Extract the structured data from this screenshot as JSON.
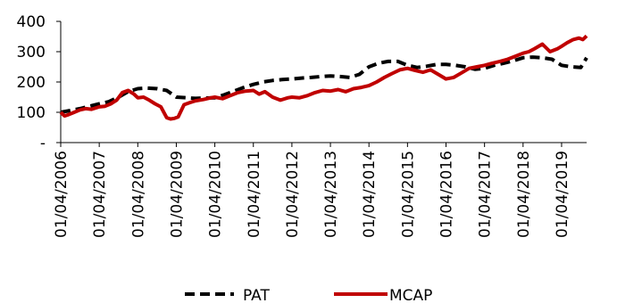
{
  "chart_data": {
    "type": "line",
    "title": "",
    "xlabel": "",
    "ylabel": "",
    "ylim": [
      0,
      400
    ],
    "yticks": [
      {
        "value": 0,
        "label": "-"
      },
      {
        "value": 100,
        "label": "100"
      },
      {
        "value": 200,
        "label": "200"
      },
      {
        "value": 300,
        "label": "300"
      },
      {
        "value": 400,
        "label": "400"
      }
    ],
    "xlim": [
      2006.0,
      2019.65
    ],
    "xticks": [
      {
        "value": 2006,
        "label": "01/04/2006"
      },
      {
        "value": 2007,
        "label": "01/04/2007"
      },
      {
        "value": 2008,
        "label": "01/04/2008"
      },
      {
        "value": 2009,
        "label": "01/04/2009"
      },
      {
        "value": 2010,
        "label": "01/04/2010"
      },
      {
        "value": 2011,
        "label": "01/04/2011"
      },
      {
        "value": 2012,
        "label": "01/04/2012"
      },
      {
        "value": 2013,
        "label": "01/04/2013"
      },
      {
        "value": 2014,
        "label": "01/04/2014"
      },
      {
        "value": 2015,
        "label": "01/04/2015"
      },
      {
        "value": 2016,
        "label": "01/04/2016"
      },
      {
        "value": 2017,
        "label": "01/04/2017"
      },
      {
        "value": 2018,
        "label": "01/04/2018"
      },
      {
        "value": 2019,
        "label": "01/04/2019"
      }
    ],
    "grid": false,
    "legend_position": "bottom",
    "series": [
      {
        "name": "PAT",
        "color": "#000000",
        "style": "dashed",
        "x": [
          2006.0,
          2006.25,
          2006.5,
          2006.75,
          2007.0,
          2007.25,
          2007.5,
          2007.75,
          2008.0,
          2008.25,
          2008.5,
          2008.75,
          2009.0,
          2009.25,
          2009.5,
          2009.75,
          2010.0,
          2010.25,
          2010.5,
          2010.75,
          2011.0,
          2011.25,
          2011.5,
          2011.75,
          2012.0,
          2012.25,
          2012.5,
          2012.75,
          2013.0,
          2013.25,
          2013.5,
          2013.75,
          2014.0,
          2014.25,
          2014.5,
          2014.75,
          2015.0,
          2015.25,
          2015.5,
          2015.75,
          2016.0,
          2016.25,
          2016.5,
          2016.75,
          2017.0,
          2017.25,
          2017.5,
          2017.75,
          2018.0,
          2018.25,
          2018.5,
          2018.75,
          2019.0,
          2019.25,
          2019.5,
          2019.65
        ],
        "values": [
          100,
          106,
          112,
          120,
          128,
          135,
          150,
          168,
          178,
          180,
          178,
          172,
          150,
          148,
          146,
          147,
          148,
          158,
          170,
          182,
          192,
          200,
          205,
          208,
          210,
          213,
          215,
          218,
          220,
          218,
          215,
          225,
          250,
          262,
          268,
          268,
          255,
          248,
          252,
          258,
          258,
          255,
          250,
          242,
          245,
          255,
          262,
          270,
          280,
          282,
          280,
          275,
          255,
          250,
          248,
          280
        ]
      },
      {
        "name": "MCAP",
        "color": "#c00000",
        "style": "solid",
        "x": [
          2006.0,
          2006.1,
          2006.2,
          2006.35,
          2006.5,
          2006.65,
          2006.8,
          2007.0,
          2007.15,
          2007.3,
          2007.45,
          2007.6,
          2007.75,
          2007.9,
          2008.0,
          2008.15,
          2008.3,
          2008.45,
          2008.6,
          2008.75,
          2008.85,
          2008.95,
          2009.05,
          2009.2,
          2009.35,
          2009.5,
          2009.7,
          2009.9,
          2010.0,
          2010.2,
          2010.4,
          2010.6,
          2010.8,
          2011.0,
          2011.15,
          2011.3,
          2011.5,
          2011.7,
          2011.9,
          2012.0,
          2012.2,
          2012.4,
          2012.6,
          2012.8,
          2013.0,
          2013.2,
          2013.4,
          2013.6,
          2013.8,
          2014.0,
          2014.2,
          2014.4,
          2014.6,
          2014.8,
          2015.0,
          2015.2,
          2015.4,
          2015.6,
          2015.8,
          2016.0,
          2016.2,
          2016.4,
          2016.6,
          2016.8,
          2017.0,
          2017.2,
          2017.4,
          2017.6,
          2017.8,
          2018.0,
          2018.15,
          2018.3,
          2018.5,
          2018.7,
          2018.9,
          2019.0,
          2019.15,
          2019.3,
          2019.45,
          2019.55,
          2019.65
        ],
        "values": [
          100,
          88,
          92,
          100,
          108,
          112,
          110,
          118,
          120,
          128,
          140,
          165,
          172,
          160,
          148,
          150,
          140,
          128,
          118,
          82,
          78,
          80,
          85,
          125,
          132,
          138,
          142,
          148,
          150,
          145,
          155,
          165,
          170,
          172,
          160,
          168,
          150,
          140,
          148,
          150,
          148,
          155,
          165,
          172,
          170,
          175,
          168,
          178,
          182,
          188,
          200,
          215,
          228,
          240,
          245,
          238,
          232,
          240,
          225,
          210,
          215,
          230,
          245,
          250,
          255,
          262,
          268,
          275,
          285,
          295,
          300,
          310,
          325,
          300,
          310,
          318,
          330,
          340,
          345,
          340,
          352
        ]
      }
    ]
  }
}
